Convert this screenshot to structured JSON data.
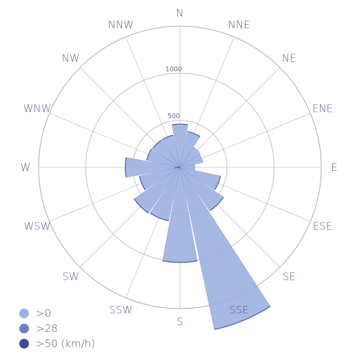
{
  "chart_data": {
    "type": "wind-rose",
    "title": "",
    "ring_labels": [
      "500",
      "1000"
    ],
    "rlim": [
      0,
      1500
    ],
    "grid": true,
    "legend_position": "bottom-left",
    "directions": [
      "N",
      "NNE",
      "NE",
      "ENE",
      "E",
      "ESE",
      "SE",
      "SSE",
      "S",
      "SSW",
      "SW",
      "WSW",
      "W",
      "WNW",
      "NW",
      "NNW"
    ],
    "series": [
      {
        "name": ">0",
        "color": "#9cb1e0",
        "values": [
          460,
          390,
          260,
          250,
          160,
          440,
          560,
          1760,
          1010,
          580,
          590,
          440,
          580,
          360,
          350,
          350
        ]
      },
      {
        "name": ">28",
        "color": "#6a7fc8",
        "values": [
          0,
          0,
          0,
          0,
          0,
          0,
          0,
          0,
          0,
          0,
          0,
          20,
          50,
          0,
          0,
          0
        ]
      },
      {
        "name": ">50 (km/h)",
        "color": "#3c4a9a",
        "values": [
          0,
          0,
          0,
          0,
          0,
          0,
          0,
          0,
          0,
          0,
          0,
          8,
          15,
          0,
          0,
          0
        ]
      }
    ]
  }
}
